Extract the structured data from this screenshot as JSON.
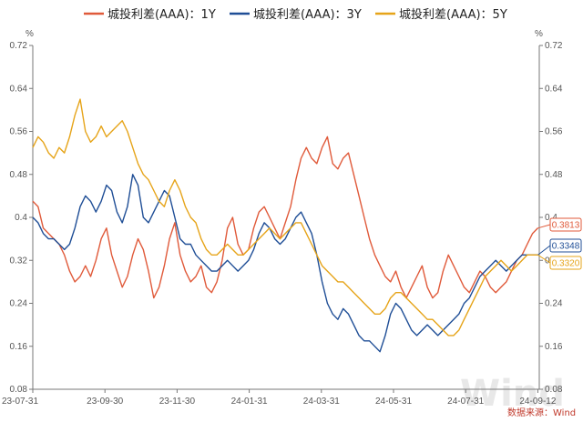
{
  "chart_data": {
    "type": "line",
    "title": "",
    "y_unit": "%",
    "ylim": [
      0.08,
      0.72
    ],
    "yticks": [
      "0.08",
      "0.16",
      "0.24",
      "0.32",
      "0.4",
      "0.48",
      "0.56",
      "0.64",
      "0.72"
    ],
    "x_labels": [
      "23-07-31",
      "23-09-30",
      "23-11-30",
      "24-01-31",
      "24-03-31",
      "24-05-31",
      "24-07-31",
      "24-09-12"
    ],
    "grid": false,
    "legend_position": "top",
    "source": "数据来源：Wind",
    "watermark": "Wind",
    "series": [
      {
        "name": "城投利差(AAA)：1Y",
        "color": "#e05a3a",
        "end_label": "0.3813",
        "values": [
          0.43,
          0.42,
          0.38,
          0.37,
          0.36,
          0.35,
          0.33,
          0.3,
          0.28,
          0.29,
          0.31,
          0.29,
          0.32,
          0.36,
          0.38,
          0.33,
          0.3,
          0.27,
          0.29,
          0.33,
          0.36,
          0.34,
          0.3,
          0.25,
          0.27,
          0.31,
          0.36,
          0.39,
          0.33,
          0.3,
          0.28,
          0.29,
          0.31,
          0.27,
          0.26,
          0.28,
          0.32,
          0.38,
          0.4,
          0.35,
          0.33,
          0.34,
          0.38,
          0.41,
          0.42,
          0.4,
          0.38,
          0.36,
          0.39,
          0.42,
          0.47,
          0.51,
          0.53,
          0.51,
          0.5,
          0.53,
          0.55,
          0.5,
          0.49,
          0.51,
          0.52,
          0.48,
          0.44,
          0.4,
          0.36,
          0.33,
          0.31,
          0.29,
          0.28,
          0.3,
          0.27,
          0.25,
          0.27,
          0.29,
          0.31,
          0.27,
          0.25,
          0.26,
          0.3,
          0.33,
          0.31,
          0.29,
          0.27,
          0.26,
          0.28,
          0.3,
          0.29,
          0.27,
          0.26,
          0.27,
          0.28,
          0.3,
          0.32,
          0.33,
          0.35,
          0.37,
          0.38
        ]
      },
      {
        "name": "城投利差(AAA)：3Y",
        "color": "#1f4e96",
        "end_label": "0.3348",
        "values": [
          0.4,
          0.39,
          0.37,
          0.36,
          0.36,
          0.35,
          0.34,
          0.35,
          0.38,
          0.42,
          0.44,
          0.43,
          0.41,
          0.43,
          0.46,
          0.45,
          0.41,
          0.39,
          0.42,
          0.48,
          0.46,
          0.4,
          0.39,
          0.41,
          0.43,
          0.45,
          0.44,
          0.4,
          0.36,
          0.35,
          0.35,
          0.33,
          0.32,
          0.31,
          0.3,
          0.3,
          0.31,
          0.32,
          0.31,
          0.3,
          0.31,
          0.32,
          0.34,
          0.37,
          0.39,
          0.38,
          0.36,
          0.35,
          0.36,
          0.38,
          0.4,
          0.41,
          0.39,
          0.37,
          0.33,
          0.28,
          0.24,
          0.22,
          0.21,
          0.23,
          0.22,
          0.2,
          0.18,
          0.17,
          0.17,
          0.16,
          0.15,
          0.18,
          0.22,
          0.24,
          0.23,
          0.21,
          0.19,
          0.18,
          0.19,
          0.2,
          0.19,
          0.18,
          0.19,
          0.2,
          0.21,
          0.22,
          0.24,
          0.25,
          0.27,
          0.29,
          0.3,
          0.31,
          0.32,
          0.31,
          0.3,
          0.31,
          0.32,
          0.33,
          0.33,
          0.33,
          0.33
        ]
      },
      {
        "name": "城投利差(AAA)：5Y",
        "color": "#e6a419",
        "end_label": "0.3320",
        "values": [
          0.53,
          0.55,
          0.54,
          0.52,
          0.51,
          0.53,
          0.52,
          0.55,
          0.59,
          0.62,
          0.56,
          0.54,
          0.55,
          0.57,
          0.55,
          0.56,
          0.57,
          0.58,
          0.56,
          0.53,
          0.5,
          0.48,
          0.47,
          0.45,
          0.43,
          0.42,
          0.45,
          0.47,
          0.45,
          0.42,
          0.4,
          0.39,
          0.36,
          0.34,
          0.33,
          0.33,
          0.34,
          0.35,
          0.34,
          0.33,
          0.33,
          0.34,
          0.35,
          0.36,
          0.37,
          0.38,
          0.37,
          0.36,
          0.37,
          0.38,
          0.39,
          0.39,
          0.37,
          0.35,
          0.33,
          0.31,
          0.3,
          0.29,
          0.28,
          0.28,
          0.27,
          0.26,
          0.25,
          0.24,
          0.23,
          0.22,
          0.22,
          0.23,
          0.25,
          0.26,
          0.26,
          0.25,
          0.24,
          0.23,
          0.22,
          0.21,
          0.21,
          0.2,
          0.19,
          0.18,
          0.18,
          0.19,
          0.21,
          0.23,
          0.25,
          0.27,
          0.29,
          0.3,
          0.31,
          0.32,
          0.31,
          0.3,
          0.31,
          0.32,
          0.33,
          0.33,
          0.33
        ]
      }
    ]
  }
}
